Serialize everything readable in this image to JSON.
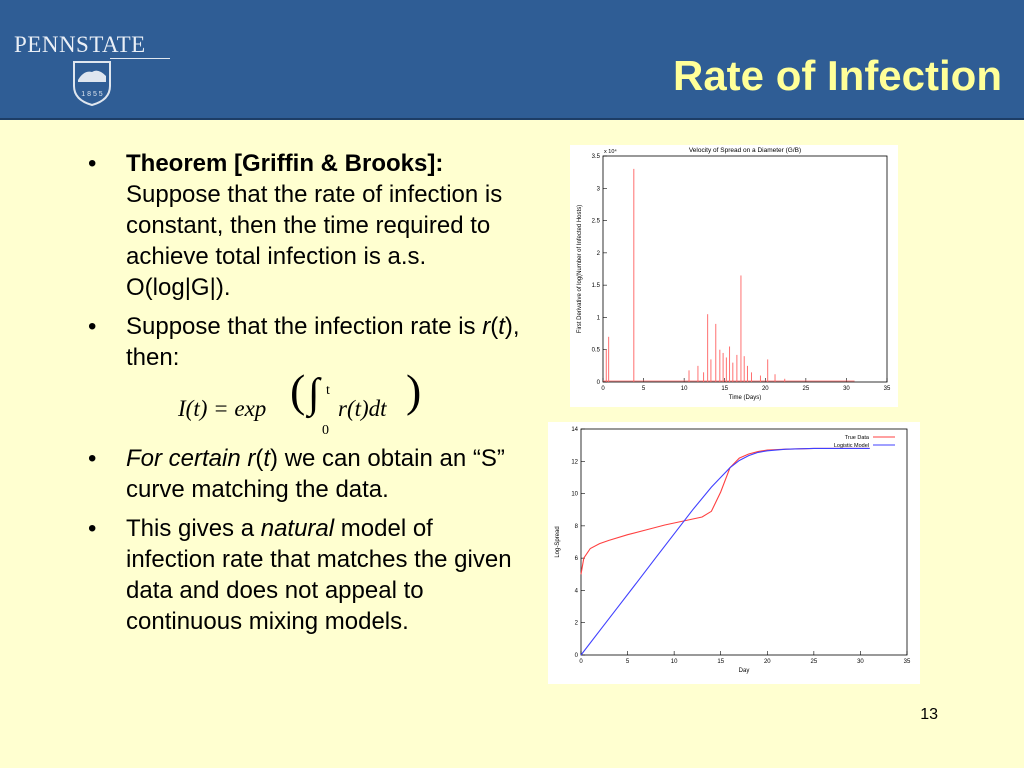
{
  "header": {
    "title": "Rate of Infection",
    "logo_text": "PENNSTATE",
    "logo_year": "1 8 5 5"
  },
  "bullets": [
    {
      "bold": "Theorem [Griffin & Brooks]:",
      "text": "Suppose that the rate of infection is constant, then the time required to achieve total infection is a.s. O(log|G|)."
    },
    {
      "prefix": "Suppose that the infection rate is ",
      "var1": "r",
      "paren_open": "(",
      "var2": "t",
      "suffix": "), then:"
    },
    {
      "italic": "For certain ",
      "var1": "r",
      "paren_open": "(",
      "var2": "t",
      "suffix": ") we can obtain an “S” curve matching the data."
    },
    {
      "prefix": "This gives a ",
      "italic": "natural",
      "suffix": " model of infection rate that matches the given data and does not appeal to continuous mixing models."
    }
  ],
  "formula": {
    "lhs": "I(t) = exp",
    "integrand": "r(t)dt",
    "upper": "t",
    "lower": "0"
  },
  "chart_data": [
    {
      "type": "line",
      "title": "Velocity of Spread on a Diameter (G/B)",
      "xlabel": "Time (Days)",
      "ylabel": "First Derivative of log(Number of Infected Hosts)",
      "multiplier_label": "x 10⁴",
      "xlim": [
        0,
        35
      ],
      "ylim": [
        0,
        3.5
      ],
      "xticks": [
        "0",
        "5",
        "10",
        "15",
        "20",
        "25",
        "30",
        "35"
      ],
      "yticks": [
        "0",
        "0.5",
        "1",
        "1.5",
        "2",
        "2.5",
        "3",
        "3.5"
      ],
      "series": [
        {
          "color": "#ff6060",
          "spikes": [
            {
              "x": 0.4,
              "y": 0.5
            },
            {
              "x": 0.7,
              "y": 0.7
            },
            {
              "x": 3.8,
              "y": 3.3
            },
            {
              "x": 10.6,
              "y": 0.18
            },
            {
              "x": 11.7,
              "y": 0.25
            },
            {
              "x": 12.4,
              "y": 0.15
            },
            {
              "x": 12.9,
              "y": 1.05
            },
            {
              "x": 13.3,
              "y": 0.35
            },
            {
              "x": 13.9,
              "y": 0.9
            },
            {
              "x": 14.4,
              "y": 0.5
            },
            {
              "x": 14.8,
              "y": 0.45
            },
            {
              "x": 15.2,
              "y": 0.38
            },
            {
              "x": 15.6,
              "y": 0.55
            },
            {
              "x": 16.0,
              "y": 0.3
            },
            {
              "x": 16.5,
              "y": 0.42
            },
            {
              "x": 17.0,
              "y": 1.65
            },
            {
              "x": 17.4,
              "y": 0.4
            },
            {
              "x": 17.8,
              "y": 0.25
            },
            {
              "x": 18.3,
              "y": 0.15
            },
            {
              "x": 19.4,
              "y": 0.1
            },
            {
              "x": 20.3,
              "y": 0.35
            },
            {
              "x": 21.2,
              "y": 0.12
            },
            {
              "x": 22.4,
              "y": 0.05
            }
          ]
        }
      ]
    },
    {
      "type": "line",
      "title": "",
      "xlabel": "Day",
      "ylabel": "Log-Spread",
      "xlim": [
        0,
        35
      ],
      "ylim": [
        0,
        14
      ],
      "xticks": [
        "0",
        "5",
        "10",
        "15",
        "20",
        "25",
        "30",
        "35"
      ],
      "yticks": [
        "0",
        "2",
        "4",
        "6",
        "8",
        "10",
        "12",
        "14"
      ],
      "legend_position": "top-right",
      "series": [
        {
          "name": "True Data",
          "color": "#ff4040",
          "x": [
            0,
            0.3,
            1,
            2,
            3,
            5,
            7,
            9,
            11,
            13,
            14,
            15,
            16,
            17,
            18,
            19,
            20,
            22,
            25,
            28,
            31
          ],
          "y": [
            5.0,
            6.0,
            6.6,
            6.9,
            7.1,
            7.45,
            7.75,
            8.05,
            8.3,
            8.55,
            8.9,
            10.1,
            11.6,
            12.2,
            12.45,
            12.6,
            12.7,
            12.75,
            12.8,
            12.8,
            12.8
          ]
        },
        {
          "name": "Logistic Model",
          "color": "#4040ff",
          "x": [
            0,
            2,
            4,
            6,
            8,
            10,
            12,
            14,
            15,
            16,
            17,
            18,
            19,
            20,
            22,
            25,
            28,
            31
          ],
          "y": [
            0.0,
            1.5,
            3.0,
            4.5,
            6.0,
            7.5,
            9.0,
            10.4,
            11.0,
            11.6,
            12.05,
            12.35,
            12.55,
            12.65,
            12.75,
            12.8,
            12.8,
            12.8
          ]
        }
      ]
    }
  ],
  "footer": {
    "slide_number": "13"
  }
}
